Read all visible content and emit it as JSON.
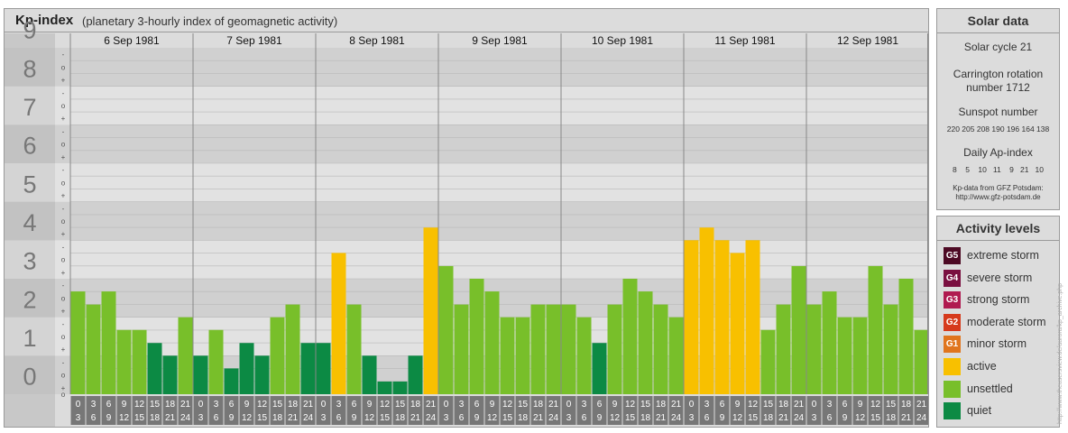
{
  "header": {
    "title": "Kp-index",
    "subtitle": "(planetary 3-hourly index of geomagnetic activity)"
  },
  "chart_data": {
    "type": "bar",
    "title": "Kp-index",
    "subtitle": "(planetary 3-hourly index of geomagnetic activity)",
    "ylim": [
      0,
      9
    ],
    "y_ticks": [
      "0",
      "1",
      "2",
      "3",
      "4",
      "5",
      "6",
      "7",
      "8",
      "9"
    ],
    "sub_ticks": [
      "+",
      "o",
      "-"
    ],
    "days": [
      {
        "label": "6 Sep 1981",
        "kp": [
          2.67,
          2.33,
          2.67,
          1.67,
          1.67,
          1.33,
          1.0,
          2.0
        ]
      },
      {
        "label": "7 Sep 1981",
        "kp": [
          1.0,
          1.67,
          0.67,
          1.33,
          1.0,
          2.0,
          2.33,
          1.33
        ]
      },
      {
        "label": "8 Sep 1981",
        "kp": [
          1.33,
          3.67,
          2.33,
          1.0,
          0.33,
          0.33,
          1.0,
          4.33
        ]
      },
      {
        "label": "9 Sep 1981",
        "kp": [
          3.33,
          2.33,
          3.0,
          2.67,
          2.0,
          2.0,
          2.33,
          2.33
        ]
      },
      {
        "label": "10 Sep 1981",
        "kp": [
          2.33,
          2.0,
          1.33,
          2.33,
          3.0,
          2.67,
          2.33,
          2.0
        ]
      },
      {
        "label": "11 Sep 1981",
        "kp": [
          4.0,
          4.33,
          4.0,
          3.67,
          4.0,
          1.67,
          2.33,
          3.33
        ]
      },
      {
        "label": "12 Sep 1981",
        "kp": [
          2.33,
          2.67,
          2.0,
          2.0,
          3.33,
          2.33,
          3.0,
          1.67
        ]
      }
    ],
    "hour_start": [
      "0",
      "3",
      "6",
      "9",
      "12",
      "15",
      "18",
      "21"
    ],
    "hour_end": [
      "3",
      "6",
      "9",
      "12",
      "15",
      "18",
      "21",
      "24"
    ],
    "colors": {
      "quiet": "#0c8a44",
      "unsettled": "#78bf2a",
      "active": "#f8c000",
      "minor_storm": "#e0751e",
      "moderate_storm": "#d63a1c",
      "strong_storm": "#b01a50",
      "severe_storm": "#7a0f40",
      "extreme_storm": "#4d0a24"
    }
  },
  "solar": {
    "title": "Solar data",
    "cycle": "Solar cycle 21",
    "carrington_1": "Carrington rotation",
    "carrington_2": "number 1712",
    "sunspot_label": "Sunspot number",
    "sunspot_values": "220 205 208 190 196 164 138",
    "ap_label": "Daily Ap-index",
    "ap_values": "8    5    10   11    9   21   10",
    "source_1": "Kp-data from GFZ Potsdam:",
    "source_2": "http://www.gfz-potsdam.de"
  },
  "activity": {
    "title": "Activity levels",
    "levels": [
      {
        "code": "G5",
        "label": "extreme storm",
        "color": "#4d0a24"
      },
      {
        "code": "G4",
        "label": "severe storm",
        "color": "#7a0f40"
      },
      {
        "code": "G3",
        "label": "strong storm",
        "color": "#b01a50"
      },
      {
        "code": "G2",
        "label": "moderate storm",
        "color": "#d63a1c"
      },
      {
        "code": "G1",
        "label": "minor storm",
        "color": "#e0751e"
      },
      {
        "code": "",
        "label": "active",
        "color": "#f8c000"
      },
      {
        "code": "",
        "label": "unsettled",
        "color": "#78bf2a"
      },
      {
        "code": "",
        "label": "quiet",
        "color": "#0c8a44"
      }
    ]
  },
  "credit": "http://www.theusersview.de/aurora/kp_archive.php"
}
